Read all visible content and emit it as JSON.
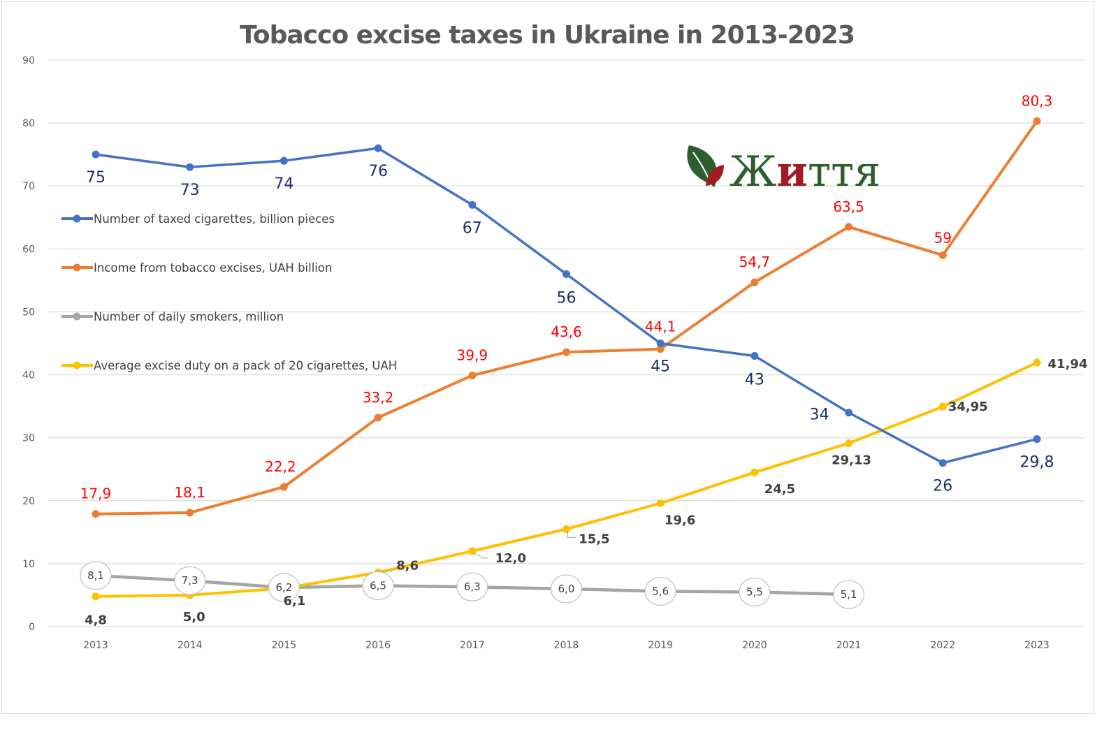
{
  "chart_data": {
    "type": "line",
    "title": "Tobacco excise taxes in Ukraine in 2013-2023",
    "xlabel": "",
    "ylabel": "",
    "x": [
      "2013",
      "2014",
      "2015",
      "2016",
      "2017",
      "2018",
      "2019",
      "2020",
      "2021",
      "2022",
      "2023"
    ],
    "ylim": [
      0,
      90
    ],
    "yticks": [
      "0",
      "10",
      "20",
      "30",
      "40",
      "50",
      "60",
      "70",
      "80",
      "90"
    ],
    "grid": true,
    "legend_position": "left",
    "series": [
      {
        "name": "Number of taxed cigarettes, billion pieces",
        "color": "#4472c4",
        "label_color": "#1f2f6b",
        "values": [
          75,
          73,
          74,
          76,
          67,
          56,
          45,
          43,
          34,
          26,
          29.8
        ],
        "labels": [
          "75",
          "73",
          "74",
          "76",
          "67",
          "56",
          "45",
          "43",
          "34",
          "26",
          "29,8"
        ]
      },
      {
        "name": "Income from tobacco excises, UAH billion",
        "color": "#ed7d31",
        "label_color": "#ff0000",
        "values": [
          17.9,
          18.1,
          22.2,
          33.2,
          39.9,
          43.6,
          44.1,
          54.7,
          63.5,
          59,
          80.3
        ],
        "labels": [
          "17,9",
          "18,1",
          "22,2",
          "33,2",
          "39,9",
          "43,6",
          "44,1",
          "54,7",
          "63,5",
          "59",
          "80,3"
        ]
      },
      {
        "name": "Number of daily smokers, million",
        "color": "#a5a5a5",
        "label_color": "#404040",
        "values": [
          8.1,
          7.3,
          6.2,
          6.5,
          6.3,
          6.0,
          5.6,
          5.5,
          5.1,
          null,
          null
        ],
        "labels": [
          "8,1",
          "7,3",
          "6,2",
          "6,5",
          "6,3",
          "6,0",
          "5,6",
          "5,5",
          "5,1",
          "",
          ""
        ]
      },
      {
        "name": "Average excise duty on a pack of 20 cigarettes, UAH",
        "color": "#ffc000",
        "label_color": "#404040",
        "values": [
          4.8,
          5.0,
          6.1,
          8.6,
          12.0,
          15.5,
          19.6,
          24.5,
          29.13,
          34.95,
          41.94
        ],
        "labels": [
          "4,8",
          "5,0",
          "6,1",
          "8,6",
          "12,0",
          "15,5",
          "19,6",
          "24,5",
          "29,13",
          "34,95",
          "41,94"
        ]
      }
    ]
  },
  "logo": {
    "text_part1": "Ж",
    "text_part2": "и",
    "text_part3": "ття",
    "green": "#2e5e2e",
    "red": "#a01c22"
  }
}
